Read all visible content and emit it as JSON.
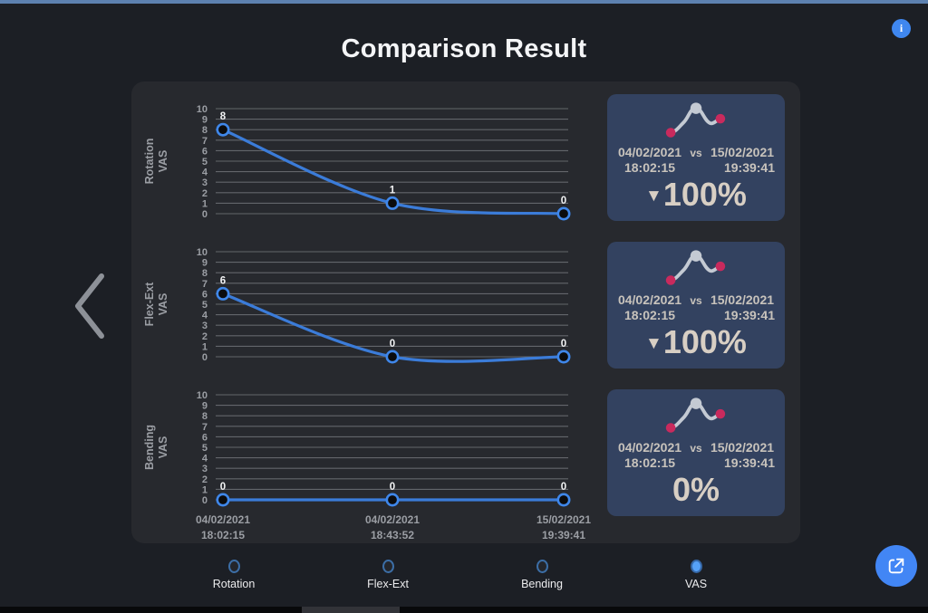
{
  "page": {
    "title": "Comparison Result"
  },
  "icons": {
    "info": "i",
    "trend_down": "▼",
    "back": "chevron-left",
    "export": "open-external",
    "sparkline": "trend-curve"
  },
  "colors": {
    "top_strip": "#5d81b0",
    "page_bg": "#1c1f25",
    "panel_bg": "#27292e",
    "card_bg": "#334260",
    "card_text": "#c8c3bc",
    "percent_text": "#d8cfc4",
    "pink_dot": "#c92a5d",
    "spark_line": "#c4cad3",
    "grid": "#63666b",
    "tick": "#9b9ea4",
    "line": "#3b7cd9",
    "point_ring": "#3f87ea",
    "point_fill": "#0b0c0e",
    "button_blue": "#4286f5",
    "radio_selected": "#55a1f8"
  },
  "chart_data": [
    {
      "type": "line",
      "ylabel": "Rotation VAS",
      "ylabel_lines": [
        "Rotation",
        "VAS"
      ],
      "x": [
        "04/02/2021 18:02:15",
        "04/02/2021 18:43:52",
        "15/02/2021 19:39:41"
      ],
      "values": [
        8,
        1,
        0
      ],
      "point_labels": [
        "8",
        "1",
        "0"
      ],
      "ylim": [
        0,
        10
      ],
      "yticks": [
        0,
        1,
        2,
        3,
        4,
        5,
        6,
        7,
        8,
        9,
        10
      ],
      "grid": true,
      "line_color": "#3b7cd9"
    },
    {
      "type": "line",
      "ylabel": "Flex-Ext VAS",
      "ylabel_lines": [
        "Flex-Ext",
        "VAS"
      ],
      "x": [
        "04/02/2021 18:02:15",
        "04/02/2021 18:43:52",
        "15/02/2021 19:39:41"
      ],
      "values": [
        6,
        0,
        0
      ],
      "point_labels": [
        "6",
        "0",
        "0"
      ],
      "ylim": [
        0,
        10
      ],
      "yticks": [
        0,
        1,
        2,
        3,
        4,
        5,
        6,
        7,
        8,
        9,
        10
      ],
      "grid": true,
      "line_color": "#3b7cd9"
    },
    {
      "type": "line",
      "ylabel": "Bending VAS",
      "ylabel_lines": [
        "Bending",
        "VAS"
      ],
      "x": [
        "04/02/2021 18:02:15",
        "04/02/2021 18:43:52",
        "15/02/2021 19:39:41"
      ],
      "values": [
        0,
        0,
        0
      ],
      "point_labels": [
        "0",
        "0",
        "0"
      ],
      "ylim": [
        0,
        10
      ],
      "yticks": [
        0,
        1,
        2,
        3,
        4,
        5,
        6,
        7,
        8,
        9,
        10
      ],
      "grid": true,
      "line_color": "#3b7cd9"
    }
  ],
  "cards": [
    {
      "date_left": "04/02/2021",
      "time_left": "18:02:15",
      "vs_label": "vs",
      "date_right": "15/02/2021",
      "time_right": "19:39:41",
      "change": "100%",
      "trend": "down"
    },
    {
      "date_left": "04/02/2021",
      "time_left": "18:02:15",
      "vs_label": "vs",
      "date_right": "15/02/2021",
      "time_right": "19:39:41",
      "change": "100%",
      "trend": "down"
    },
    {
      "date_left": "04/02/2021",
      "time_left": "18:02:15",
      "vs_label": "vs",
      "date_right": "15/02/2021",
      "time_right": "19:39:41",
      "change": "0%",
      "trend": "flat"
    }
  ],
  "footer": {
    "options": [
      {
        "label": "Rotation",
        "selected": false
      },
      {
        "label": "Flex-Ext",
        "selected": false
      },
      {
        "label": "Bending",
        "selected": false
      },
      {
        "label": "VAS",
        "selected": true
      }
    ]
  }
}
